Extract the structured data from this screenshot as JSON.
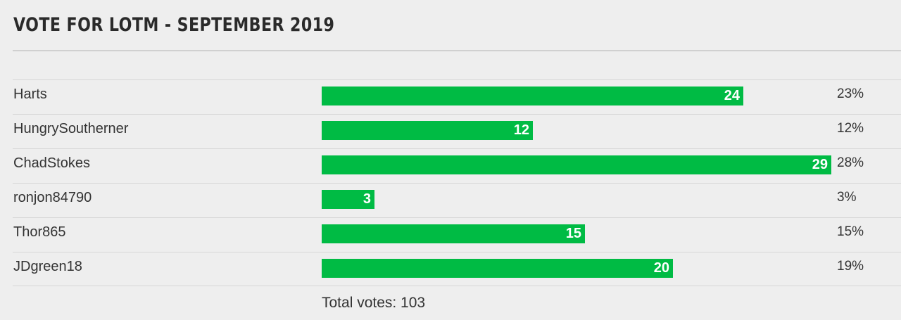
{
  "poll": {
    "title": "VOTE FOR LOTM - SEPTEMBER 2019",
    "bar_color": "#00bb44",
    "max_votes": 29,
    "options": [
      {
        "name": "Harts",
        "votes": "24",
        "votes_num": 24,
        "percent": "23%"
      },
      {
        "name": "HungrySoutherner",
        "votes": "12",
        "votes_num": 12,
        "percent": "12%"
      },
      {
        "name": "ChadStokes",
        "votes": "29",
        "votes_num": 29,
        "percent": "28%"
      },
      {
        "name": "ronjon84790",
        "votes": "3",
        "votes_num": 3,
        "percent": "3%"
      },
      {
        "name": "Thor865",
        "votes": "15",
        "votes_num": 15,
        "percent": "15%"
      },
      {
        "name": "JDgreen18",
        "votes": "20",
        "votes_num": 20,
        "percent": "19%"
      }
    ],
    "total_label": "Total votes: 103"
  }
}
